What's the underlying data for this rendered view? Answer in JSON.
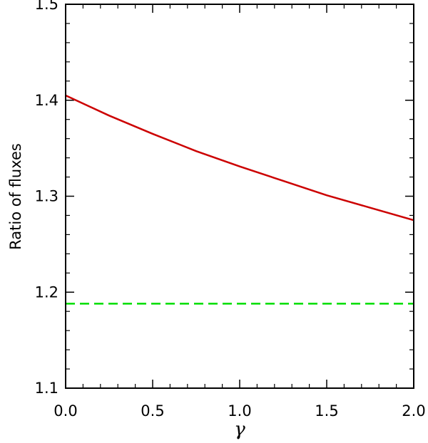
{
  "chart_data": {
    "type": "line",
    "xlabel": "γ",
    "ylabel": "Ratio of fluxes",
    "xlim": [
      0.0,
      2.0
    ],
    "ylim": [
      1.1,
      1.5
    ],
    "x_ticks": [
      "0.0",
      "0.5",
      "1.0",
      "1.5",
      "2.0"
    ],
    "y_ticks": [
      "1.1",
      "1.2",
      "1.3",
      "1.4",
      "1.5"
    ],
    "grid": false,
    "series": [
      {
        "color": "#cc0000",
        "style": "solid",
        "x": [
          0.0,
          0.25,
          0.5,
          0.75,
          1.0,
          1.25,
          1.5,
          1.75,
          2.0
        ],
        "y": [
          1.405,
          1.384,
          1.365,
          1.347,
          1.331,
          1.316,
          1.301,
          1.288,
          1.275
        ]
      },
      {
        "color": "#00dd00",
        "style": "dashed",
        "x": [
          0.0,
          2.0
        ],
        "y": [
          1.188,
          1.188
        ]
      }
    ]
  }
}
